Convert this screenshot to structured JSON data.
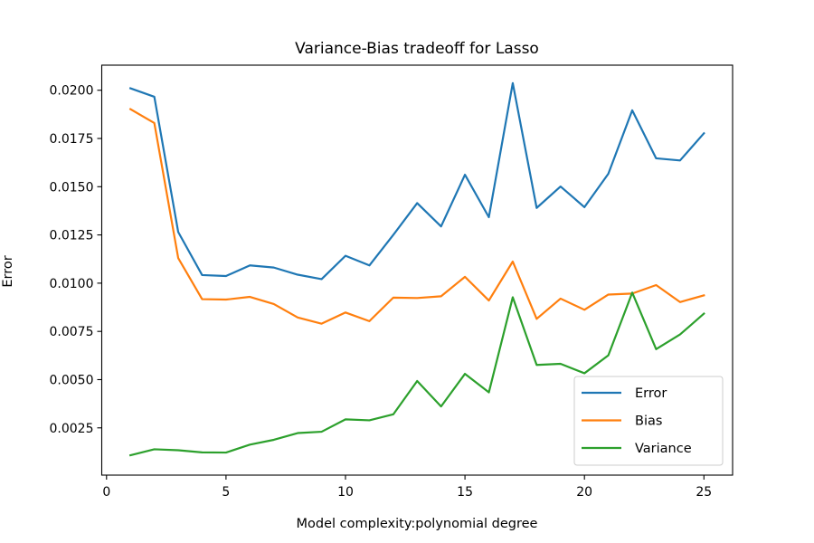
{
  "chart_data": {
    "type": "line",
    "title": "Variance-Bias tradeoff for Lasso",
    "xlabel": "Model complexity:polynomial degree",
    "ylabel": "Error",
    "xlim": [
      -0.2,
      26.2
    ],
    "ylim": [
      5e-05,
      0.0213
    ],
    "xticks": [
      0,
      5,
      10,
      15,
      20,
      25
    ],
    "yticks": [
      0.0025,
      0.005,
      0.0075,
      0.01,
      0.0125,
      0.015,
      0.0175,
      0.02
    ],
    "ytick_labels": [
      "0.0025",
      "0.0050",
      "0.0075",
      "0.0100",
      "0.0125",
      "0.0150",
      "0.0175",
      "0.0200"
    ],
    "grid": false,
    "legend_position": "lower-right",
    "x": [
      1,
      2,
      3,
      4,
      5,
      6,
      7,
      8,
      9,
      10,
      11,
      12,
      13,
      14,
      15,
      16,
      17,
      18,
      19,
      20,
      21,
      22,
      23,
      24,
      25
    ],
    "series": [
      {
        "name": "Error",
        "color": "#1f77b4",
        "values": [
          0.0201,
          0.01966,
          0.01265,
          0.01042,
          0.01037,
          0.01092,
          0.01081,
          0.01044,
          0.01021,
          0.01142,
          0.01092,
          0.0125,
          0.01415,
          0.01294,
          0.01562,
          0.01342,
          0.02037,
          0.0139,
          0.01501,
          0.01394,
          0.01567,
          0.01896,
          0.01647,
          0.01636,
          0.01777
        ]
      },
      {
        "name": "Bias",
        "color": "#ff7f0e",
        "values": [
          0.01902,
          0.0183,
          0.0113,
          0.00917,
          0.00915,
          0.00929,
          0.00892,
          0.00822,
          0.0079,
          0.00848,
          0.00803,
          0.00925,
          0.00923,
          0.00932,
          0.01033,
          0.0091,
          0.01112,
          0.00815,
          0.0092,
          0.00862,
          0.00941,
          0.00946,
          0.0099,
          0.00902,
          0.00937
        ]
      },
      {
        "name": "Variance",
        "color": "#2ca02c",
        "values": [
          0.00108,
          0.00139,
          0.00134,
          0.00123,
          0.00122,
          0.00163,
          0.00188,
          0.00223,
          0.0023,
          0.00294,
          0.00289,
          0.0032,
          0.00493,
          0.00361,
          0.0053,
          0.00434,
          0.00927,
          0.00576,
          0.00582,
          0.00533,
          0.00626,
          0.00951,
          0.00658,
          0.00734,
          0.00842
        ]
      }
    ]
  }
}
